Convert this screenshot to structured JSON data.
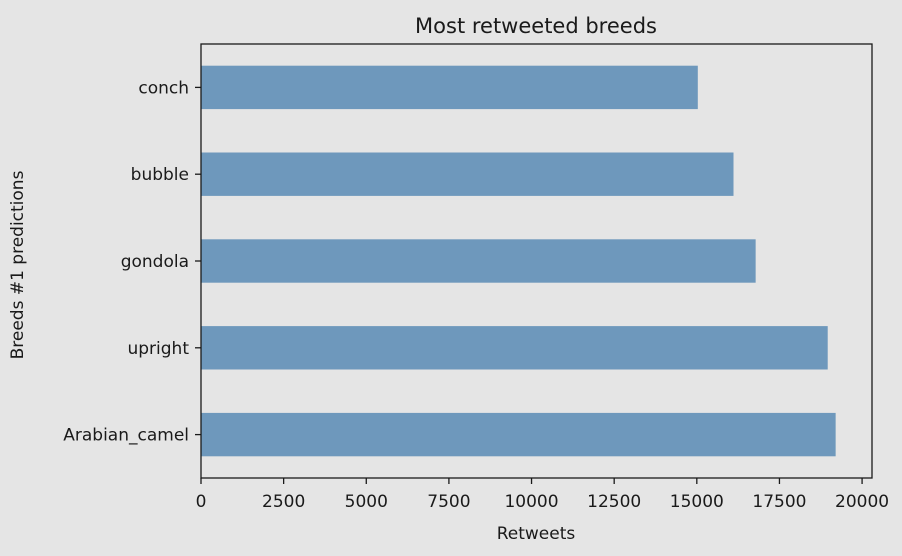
{
  "chart_data": {
    "type": "bar",
    "orientation": "horizontal",
    "title": "Most retweeted breeds",
    "xlabel": "Retweets",
    "ylabel": "Breeds #1 predictions",
    "categories": [
      "conch",
      "bubble",
      "gondola",
      "upright",
      "Arabian_camel"
    ],
    "values": [
      15030,
      16110,
      16780,
      18960,
      19200
    ],
    "xlim": [
      0,
      20300
    ],
    "xticks": [
      0,
      2500,
      5000,
      7500,
      10000,
      12500,
      15000,
      17500,
      20000
    ],
    "grid": false,
    "legend": "none",
    "colors": {
      "bar": "#6e98bc",
      "background": "#e5e5e5",
      "axes": "#1a1a1a"
    }
  }
}
